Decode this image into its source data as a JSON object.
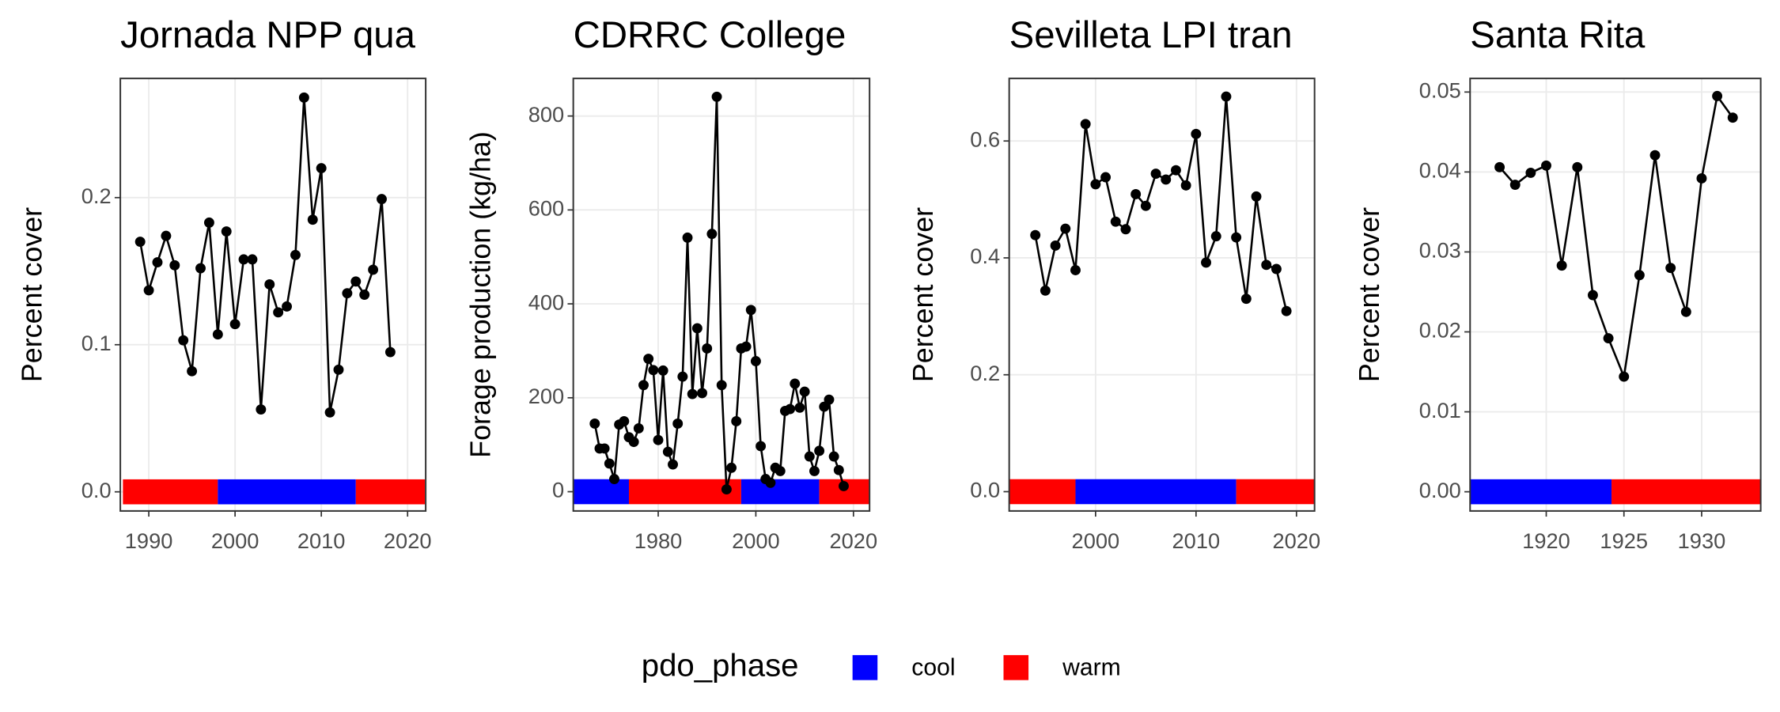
{
  "chart_data": [
    {
      "type": "line",
      "title": "Jornada NPP qua",
      "ylabel": "Percent cover",
      "x": [
        1989,
        1990,
        1991,
        1992,
        1993,
        1994,
        1995,
        1996,
        1997,
        1998,
        1999,
        2000,
        2001,
        2002,
        2003,
        2004,
        2005,
        2006,
        2007,
        2008,
        2009,
        2010,
        2011,
        2012,
        2013,
        2014,
        2015,
        2016,
        2017,
        2018
      ],
      "values": [
        0.17,
        0.137,
        0.156,
        0.174,
        0.154,
        0.103,
        0.082,
        0.152,
        0.183,
        0.107,
        0.177,
        0.114,
        0.158,
        0.158,
        0.056,
        0.141,
        0.122,
        0.126,
        0.161,
        0.268,
        0.185,
        0.22,
        0.054,
        0.083,
        0.135,
        0.143,
        0.134,
        0.151,
        0.199,
        0.095
      ],
      "color": "#000000",
      "phases": [
        {
          "phase": "warm",
          "start": 1987,
          "end": 1998
        },
        {
          "phase": "cool",
          "start": 1998,
          "end": 2014
        },
        {
          "phase": "warm",
          "start": 2014,
          "end": 2022
        }
      ],
      "xlim": [
        1986.7,
        2022.1
      ],
      "ylim": [
        -0.013,
        0.281
      ],
      "xticks": [
        1990,
        2000,
        2010,
        2020
      ],
      "yticks": [
        {
          "value": 0,
          "label": "0.0"
        },
        {
          "value": 0.1,
          "label": "0.1"
        },
        {
          "value": 0.2,
          "label": "0.2"
        }
      ],
      "grid": true
    },
    {
      "type": "line",
      "title": "CDRRC College",
      "ylabel": "Forage production (kg/ha)",
      "x": [
        1967,
        1968,
        1969,
        1970,
        1971,
        1972,
        1973,
        1974,
        1975,
        1976,
        1977,
        1978,
        1979,
        1980,
        1981,
        1982,
        1983,
        1984,
        1985,
        1986,
        1987,
        1988,
        1989,
        1990,
        1991,
        1992,
        1993,
        1994,
        1995,
        1996,
        1997,
        1998,
        1999,
        2000,
        2001,
        2002,
        2003,
        2004,
        2005,
        2006,
        2007,
        2008,
        2009,
        2010,
        2011,
        2012,
        2013,
        2014,
        2015,
        2016,
        2017,
        2018
      ],
      "values": [
        145,
        92,
        92,
        60,
        27,
        143,
        150,
        116,
        106,
        135,
        227,
        283,
        259,
        110,
        258,
        85,
        58,
        145,
        245,
        541,
        208,
        348,
        210,
        305,
        549,
        841,
        227,
        5,
        51,
        150,
        305,
        309,
        387,
        278,
        97,
        27,
        19,
        51,
        44,
        172,
        176,
        230,
        179,
        213,
        75,
        44,
        87,
        181,
        196,
        75,
        46,
        12
      ],
      "color": "#000000",
      "phases": [
        {
          "phase": "cool",
          "start": 1962.6,
          "end": 1974
        },
        {
          "phase": "warm",
          "start": 1974,
          "end": 1997
        },
        {
          "phase": "cool",
          "start": 1997,
          "end": 2013
        },
        {
          "phase": "warm",
          "start": 2013,
          "end": 2023.3
        }
      ],
      "xlim": [
        1962.6,
        2023.3
      ],
      "ylim": [
        -41,
        880
      ],
      "xticks": [
        1980,
        2000,
        2020
      ],
      "yticks": [
        0,
        200,
        400,
        600,
        800
      ],
      "grid": true
    },
    {
      "type": "line",
      "title": "Sevilleta LPI tran",
      "ylabel": "Percent cover",
      "x": [
        1994,
        1995,
        1996,
        1997,
        1998,
        1999,
        2000,
        2001,
        2002,
        2003,
        2004,
        2005,
        2006,
        2007,
        2008,
        2009,
        2010,
        2011,
        2012,
        2013,
        2014,
        2015,
        2016,
        2017,
        2018,
        2019
      ],
      "values": [
        0.439,
        0.344,
        0.421,
        0.45,
        0.379,
        0.629,
        0.526,
        0.538,
        0.462,
        0.449,
        0.509,
        0.489,
        0.544,
        0.534,
        0.55,
        0.524,
        0.612,
        0.392,
        0.437,
        0.676,
        0.435,
        0.33,
        0.505,
        0.388,
        0.381,
        0.309
      ],
      "color": "#000000",
      "phases": [
        {
          "phase": "warm",
          "start": 1991.4,
          "end": 1998
        },
        {
          "phase": "cool",
          "start": 1998,
          "end": 2014
        },
        {
          "phase": "warm",
          "start": 2014,
          "end": 2021.8
        }
      ],
      "xlim": [
        1991.4,
        2021.8
      ],
      "ylim": [
        -0.033,
        0.707
      ],
      "xticks": [
        2000,
        2010,
        2020
      ],
      "yticks": [
        {
          "value": 0,
          "label": "0.0"
        },
        {
          "value": 0.2,
          "label": "0.2"
        },
        {
          "value": 0.4,
          "label": "0.4"
        },
        {
          "value": 0.6,
          "label": "0.6"
        }
      ],
      "grid": true
    },
    {
      "type": "line",
      "title": "Santa Rita",
      "ylabel": "Percent cover",
      "x": [
        1917,
        1918,
        1919,
        1920,
        1921,
        1922,
        1923,
        1924,
        1925,
        1926,
        1927,
        1928,
        1929,
        1930,
        1931,
        1932
      ],
      "values": [
        0.0406,
        0.0384,
        0.0399,
        0.0408,
        0.0283,
        0.0406,
        0.0246,
        0.0192,
        0.0144,
        0.0271,
        0.0421,
        0.028,
        0.0225,
        0.0392,
        0.0495,
        0.0468
      ],
      "color": "#000000",
      "phases": [
        {
          "phase": "cool",
          "start": 1915.1,
          "end": 1924.2
        },
        {
          "phase": "warm",
          "start": 1924.2,
          "end": 1933.8
        }
      ],
      "xlim": [
        1915.1,
        1933.8
      ],
      "ylim": [
        -0.0024,
        0.0517
      ],
      "xticks": [
        1920,
        1925,
        1930
      ],
      "yticks": [
        {
          "value": 0,
          "label": "0.00"
        },
        {
          "value": 0.01,
          "label": "0.01"
        },
        {
          "value": 0.02,
          "label": "0.02"
        },
        {
          "value": 0.03,
          "label": "0.03"
        },
        {
          "value": 0.04,
          "label": "0.04"
        },
        {
          "value": 0.05,
          "label": "0.05"
        }
      ],
      "grid": true
    }
  ],
  "legend": {
    "title": "pdo_phase",
    "entries": [
      {
        "name": "cool",
        "color": "#0000ff"
      },
      {
        "name": "warm",
        "color": "#ff0000"
      }
    ]
  }
}
